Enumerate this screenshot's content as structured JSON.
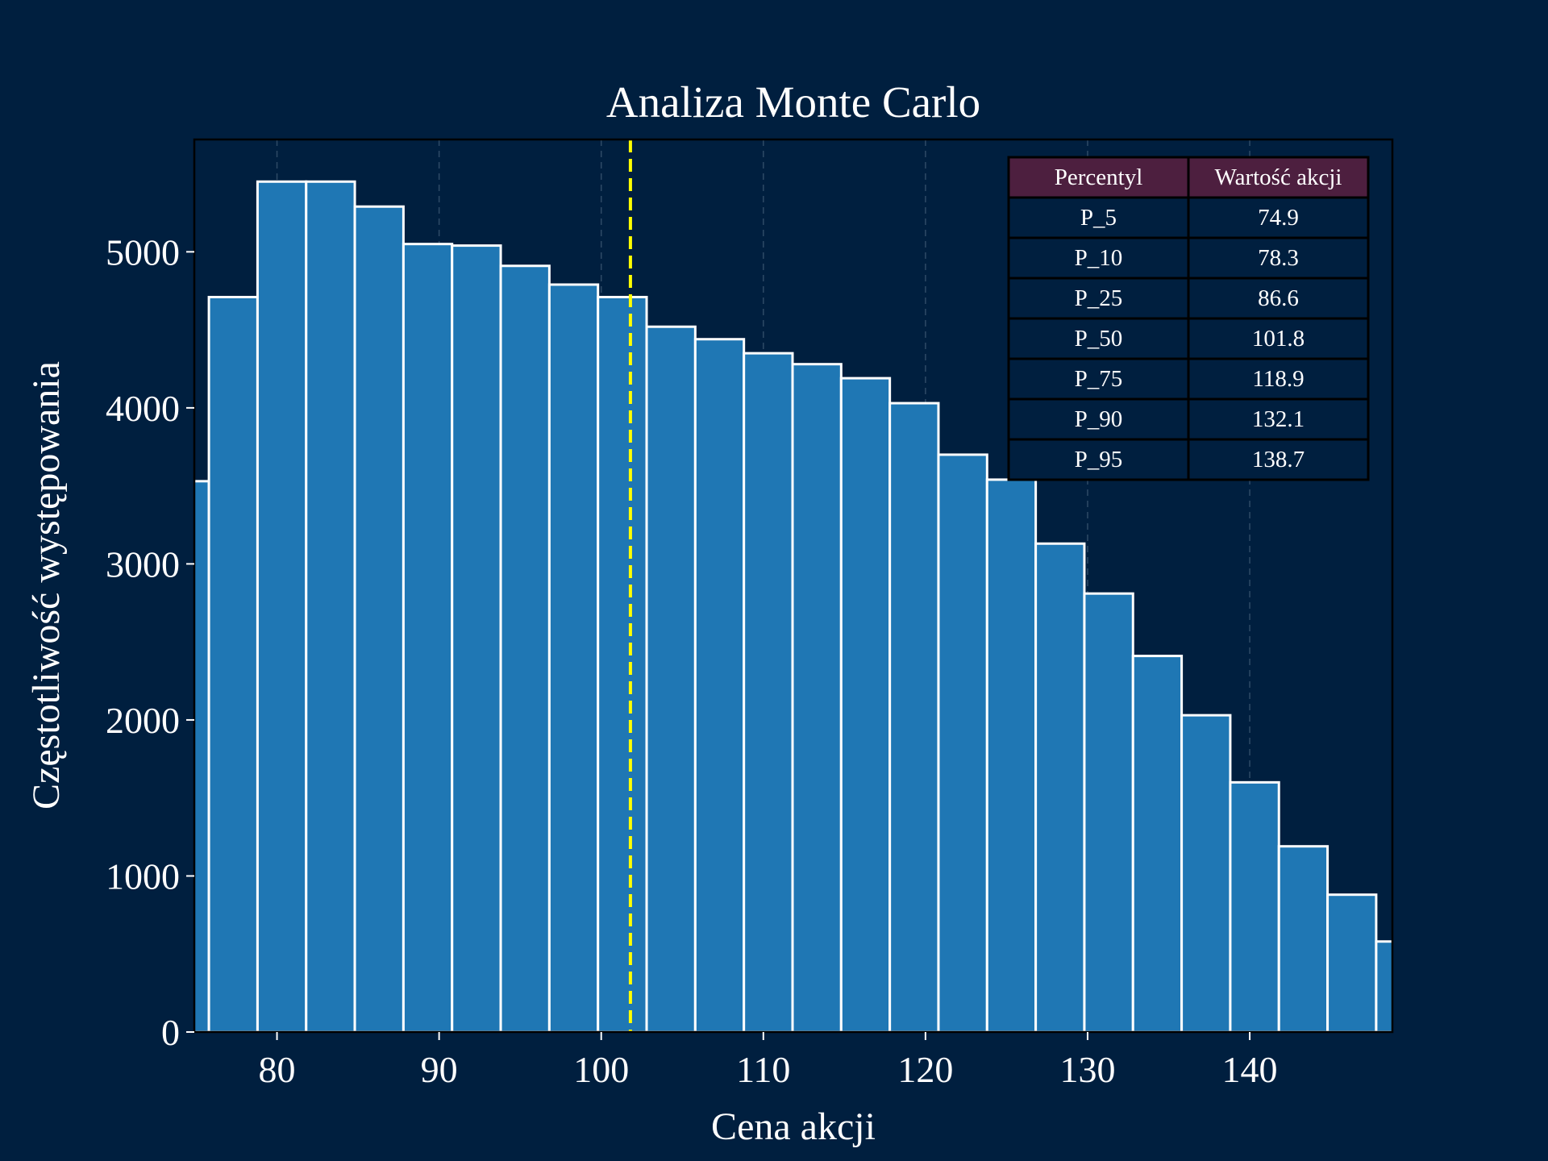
{
  "chart_data": {
    "type": "bar",
    "title": "Analiza Monte Carlo",
    "xlabel": "Cena akcji",
    "ylabel": "Częstotliwość występowania",
    "xlim": [
      74.9,
      148.8
    ],
    "ylim": [
      0,
      5720
    ],
    "x_ticks": [
      80,
      90,
      100,
      110,
      120,
      130,
      140
    ],
    "y_ticks": [
      0,
      1000,
      2000,
      3000,
      4000,
      5000
    ],
    "grid": "x-dashed",
    "bin_edges": [
      72.8,
      75.8,
      78.8,
      81.8,
      84.8,
      87.8,
      90.8,
      93.8,
      96.8,
      99.8,
      102.8,
      105.8,
      108.8,
      111.8,
      114.8,
      117.8,
      120.8,
      123.8,
      126.8,
      129.8,
      132.8,
      135.8,
      138.8,
      141.8,
      144.8,
      147.8,
      150.8
    ],
    "counts": [
      3530,
      4710,
      5450,
      5450,
      5290,
      5050,
      5040,
      4910,
      4790,
      4710,
      4520,
      4440,
      4350,
      4280,
      4190,
      4030,
      3700,
      3540,
      3130,
      2810,
      2410,
      2030,
      1600,
      1190,
      880,
      580
    ],
    "median_line": {
      "x": 101.8,
      "color": "#ffff00",
      "style": "dashed"
    },
    "bar_color": "#1f77b4",
    "bar_edge_color": "#ffffff",
    "table": {
      "headers": [
        "Percentyl",
        "Wartość akcji"
      ],
      "rows": [
        [
          "P_5",
          "74.9"
        ],
        [
          "P_10",
          "78.3"
        ],
        [
          "P_25",
          "86.6"
        ],
        [
          "P_50",
          "101.8"
        ],
        [
          "P_75",
          "118.9"
        ],
        [
          "P_90",
          "132.1"
        ],
        [
          "P_95",
          "138.7"
        ]
      ],
      "header_color": "#4d1f3f",
      "cell_color": "#001f3f"
    }
  }
}
